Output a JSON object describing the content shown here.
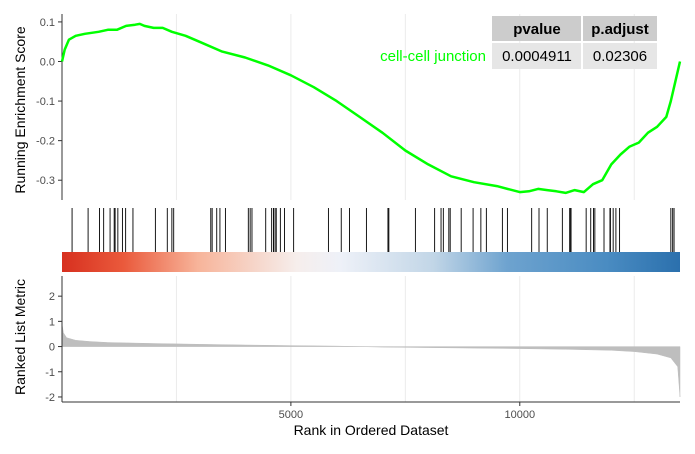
{
  "chart_data": {
    "type": "line",
    "panels": [
      "running-enrichment-score",
      "hit-positions",
      "ranked-list-metric"
    ],
    "xlabel": "Rank in Ordered Dataset",
    "x_ticks": [
      5000,
      10000
    ],
    "x_tick_labels": [
      "5000",
      "10000"
    ],
    "xlim": [
      0,
      13500
    ],
    "es_panel": {
      "ylabel": "Running Enrichment Score",
      "ylim": [
        -0.35,
        0.12
      ],
      "y_ticks": [
        0.1,
        0.0,
        -0.1,
        -0.2,
        -0.3
      ],
      "y_tick_labels": [
        "0.1",
        "0.0",
        "-0.1",
        "-0.2",
        "-0.3"
      ],
      "series": [
        {
          "name": "cell-cell junction",
          "color": "#00ff00",
          "x": [
            0,
            60,
            150,
            300,
            500,
            800,
            1000,
            1200,
            1400,
            1600,
            1700,
            1800,
            2000,
            2200,
            2400,
            2700,
            3000,
            3500,
            4000,
            4500,
            5000,
            5500,
            6000,
            6500,
            7000,
            7500,
            8000,
            8500,
            9000,
            9500,
            10000,
            10200,
            10400,
            10600,
            10800,
            11000,
            11200,
            11400,
            11600,
            11800,
            12000,
            12200,
            12400,
            12600,
            12800,
            13000,
            13200,
            13300,
            13400,
            13500
          ],
          "values": [
            0.0,
            0.03,
            0.055,
            0.065,
            0.07,
            0.075,
            0.08,
            0.08,
            0.09,
            0.093,
            0.095,
            0.09,
            0.085,
            0.085,
            0.075,
            0.065,
            0.05,
            0.025,
            0.01,
            -0.01,
            -0.035,
            -0.065,
            -0.1,
            -0.14,
            -0.18,
            -0.225,
            -0.26,
            -0.29,
            -0.305,
            -0.315,
            -0.33,
            -0.328,
            -0.322,
            -0.325,
            -0.328,
            -0.332,
            -0.325,
            -0.33,
            -0.31,
            -0.3,
            -0.26,
            -0.235,
            -0.215,
            -0.205,
            -0.18,
            -0.165,
            -0.14,
            -0.1,
            -0.05,
            0.0
          ]
        }
      ]
    },
    "hit_panel": {
      "hit_density_note": "",
      "heat_gradient": [
        "#d7301f",
        "#f4a582",
        "#f7f7f7",
        "#b7d1e4",
        "#2166ac"
      ]
    },
    "metric_panel": {
      "ylabel": "Ranked List Metric",
      "ylim": [
        -2.2,
        2.8
      ],
      "y_ticks": [
        2,
        1,
        0,
        -1,
        -2
      ],
      "y_tick_labels": [
        "2",
        "1",
        "0",
        "-1",
        "-2"
      ],
      "fill_color": "#bebebe",
      "x": [
        0,
        30,
        100,
        300,
        600,
        1000,
        2000,
        3000,
        4000,
        5000,
        6000,
        6500,
        7000,
        8000,
        9000,
        10000,
        11000,
        12000,
        12500,
        13000,
        13300,
        13450,
        13500
      ],
      "values": [
        0.9,
        0.55,
        0.35,
        0.25,
        0.2,
        0.16,
        0.12,
        0.09,
        0.06,
        0.04,
        0.02,
        0.0,
        -0.02,
        -0.04,
        -0.06,
        -0.08,
        -0.11,
        -0.15,
        -0.2,
        -0.3,
        -0.45,
        -0.8,
        -2.0
      ]
    },
    "stats_table": {
      "headers": [
        "pvalue",
        "p.adjust"
      ],
      "rows": [
        {
          "label": "cell-cell junction",
          "pvalue": "0.0004911",
          "padjust": "0.02306"
        }
      ]
    }
  }
}
